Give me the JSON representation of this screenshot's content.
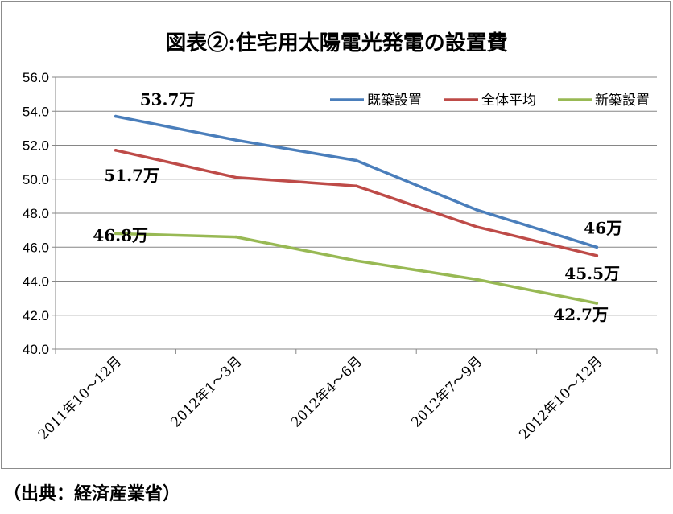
{
  "chart_data": {
    "type": "line",
    "title": "図表②:住宅用太陽電光発電の設置費",
    "xlabel": "",
    "ylabel": "",
    "categories": [
      "2011年10～12月",
      "2012年1～3月",
      "2012年4～6月",
      "2012年7～9月",
      "2012年10～12月"
    ],
    "ylim": [
      40.0,
      56.0
    ],
    "yticks": [
      "40.0",
      "42.0",
      "44.0",
      "46.0",
      "48.0",
      "50.0",
      "52.0",
      "54.0",
      "56.0"
    ],
    "grid": true,
    "legend_position": "top-right",
    "series": [
      {
        "name": "既築設置",
        "color": "#4a7ebb",
        "values": [
          53.7,
          52.3,
          51.1,
          48.2,
          46.0
        ]
      },
      {
        "name": "全体平均",
        "color": "#be4b48",
        "values": [
          51.7,
          50.1,
          49.6,
          47.2,
          45.5
        ]
      },
      {
        "name": "新築設置",
        "color": "#98b954",
        "values": [
          46.8,
          46.6,
          45.2,
          44.1,
          42.7
        ]
      }
    ],
    "annotations": [
      {
        "series": 0,
        "point": 0,
        "text": "53.7万"
      },
      {
        "series": 1,
        "point": 0,
        "text": "51.7万"
      },
      {
        "series": 2,
        "point": 0,
        "text": "46.8万"
      },
      {
        "series": 0,
        "point": 4,
        "text": "46万"
      },
      {
        "series": 1,
        "point": 4,
        "text": "45.5万"
      },
      {
        "series": 2,
        "point": 4,
        "text": "42.7万"
      }
    ]
  },
  "source_note": "（出典：経済産業省）"
}
